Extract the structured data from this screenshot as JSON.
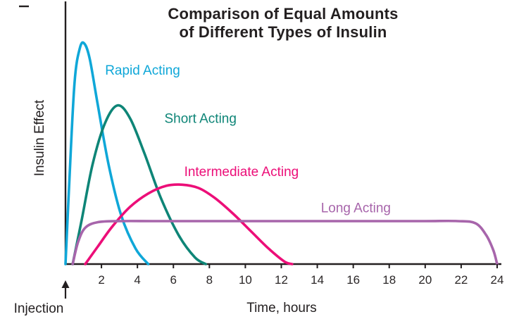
{
  "chart_data": {
    "type": "line",
    "title": "Comparison of Equal Amounts of Different Types of Insulin",
    "title_lines": [
      "Comparison of Equal Amounts",
      "of Different Types of Insulin"
    ],
    "xlabel": "Time, hours",
    "ylabel": "Insulin Effect",
    "xlim": [
      0,
      24
    ],
    "ylim": [
      0,
      1
    ],
    "x_ticks": [
      2,
      4,
      6,
      8,
      10,
      12,
      14,
      16,
      18,
      20,
      22,
      24
    ],
    "grid": false,
    "legend": "inline-colored-labels",
    "axis_color": "#231f20",
    "background": "#ffffff",
    "annotations": [
      {
        "text": "Injection",
        "x": 0,
        "position": "below-x-axis-with-up-arrow"
      }
    ],
    "series": [
      {
        "name": "Rapid Acting",
        "color": "#0fa7d8",
        "label_pos": [
          2.2,
          0.86
        ],
        "points": [
          [
            0,
            0
          ],
          [
            0.2,
            0.35
          ],
          [
            0.5,
            0.82
          ],
          [
            0.8,
            0.98
          ],
          [
            1.05,
            1.0
          ],
          [
            1.35,
            0.93
          ],
          [
            1.8,
            0.72
          ],
          [
            2.4,
            0.45
          ],
          [
            3.1,
            0.22
          ],
          [
            3.9,
            0.07
          ],
          [
            4.6,
            0
          ]
        ]
      },
      {
        "name": "Short Acting",
        "color": "#0e8577",
        "label_pos": [
          5.5,
          0.64
        ],
        "points": [
          [
            0.4,
            0
          ],
          [
            0.9,
            0.2
          ],
          [
            1.5,
            0.45
          ],
          [
            2.2,
            0.64
          ],
          [
            2.9,
            0.72
          ],
          [
            3.6,
            0.66
          ],
          [
            4.4,
            0.5
          ],
          [
            5.3,
            0.3
          ],
          [
            6.3,
            0.13
          ],
          [
            7.2,
            0.03
          ],
          [
            7.8,
            0
          ]
        ]
      },
      {
        "name": "Intermediate Acting",
        "color": "#ec0e78",
        "label_pos": [
          6.6,
          0.4
        ],
        "points": [
          [
            1.1,
            0
          ],
          [
            1.8,
            0.08
          ],
          [
            2.6,
            0.17
          ],
          [
            3.6,
            0.26
          ],
          [
            4.6,
            0.32
          ],
          [
            5.6,
            0.355
          ],
          [
            6.5,
            0.36
          ],
          [
            7.4,
            0.345
          ],
          [
            8.3,
            0.3
          ],
          [
            9.3,
            0.23
          ],
          [
            10.3,
            0.15
          ],
          [
            11.3,
            0.07
          ],
          [
            12.2,
            0.01
          ],
          [
            12.6,
            0
          ]
        ]
      },
      {
        "name": "Long Acting",
        "color": "#a765ab",
        "label_pos": [
          14.2,
          0.235
        ],
        "points": [
          [
            0.4,
            0
          ],
          [
            0.7,
            0.1
          ],
          [
            1.1,
            0.165
          ],
          [
            1.8,
            0.19
          ],
          [
            3,
            0.195
          ],
          [
            5,
            0.195
          ],
          [
            8,
            0.195
          ],
          [
            11,
            0.195
          ],
          [
            14,
            0.195
          ],
          [
            17,
            0.195
          ],
          [
            20,
            0.195
          ],
          [
            21.8,
            0.195
          ],
          [
            22.8,
            0.185
          ],
          [
            23.4,
            0.13
          ],
          [
            23.8,
            0.06
          ],
          [
            24,
            0
          ]
        ]
      }
    ]
  }
}
